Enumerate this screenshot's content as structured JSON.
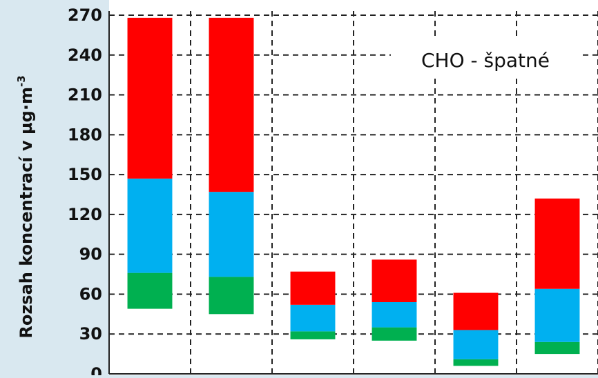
{
  "chart_data": {
    "type": "bar",
    "stacked": "floating-range",
    "annotation": "CHO - špatné",
    "ylabel": "Rozsah koncentrací v µg·m",
    "ylabel_sup": "-3",
    "ylim": [
      0,
      270
    ],
    "yticks": [
      "270",
      "240",
      "210",
      "180",
      "150",
      "120",
      "90",
      "60",
      "30",
      "0"
    ],
    "grid": true,
    "categories": [
      "",
      "",
      "",
      "",
      "",
      ""
    ],
    "series": [
      {
        "color": "#00b050",
        "base": [
          49,
          45,
          26,
          25,
          6,
          15
        ],
        "values": [
          27,
          28,
          6,
          10,
          5,
          9
        ]
      },
      {
        "color": "#00b0f0",
        "values": [
          71,
          64,
          20,
          19,
          22,
          40
        ]
      },
      {
        "color": "#ff0000",
        "values": [
          121,
          131,
          25,
          32,
          28,
          68
        ]
      }
    ]
  }
}
